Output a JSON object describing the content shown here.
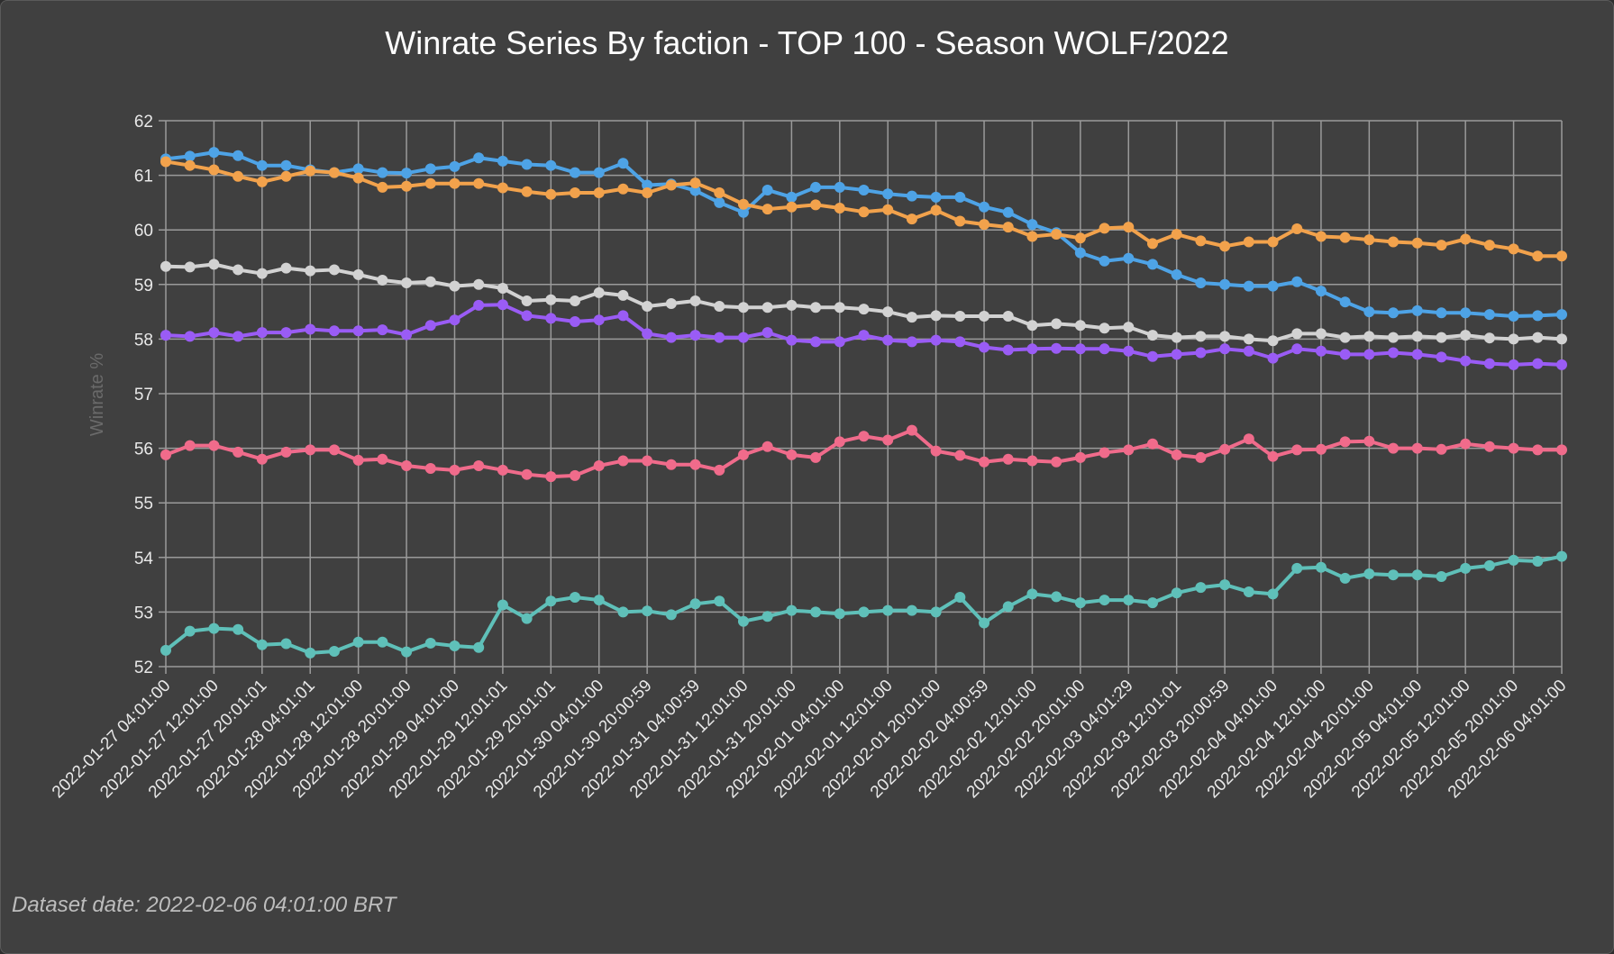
{
  "chart_data": {
    "type": "line",
    "title": "Winrate Series By faction - TOP 100 - Season WOLF/2022",
    "xlabel": "",
    "ylabel": "Winrate %",
    "ylim": [
      52,
      62
    ],
    "yticks": [
      52,
      53,
      54,
      55,
      56,
      57,
      58,
      59,
      60,
      61,
      62
    ],
    "grid": true,
    "point_count": 59,
    "x_labels": [
      "2022-01-27 04:01:00",
      "2022-01-27 12:01:00",
      "2022-01-27 20:01:01",
      "2022-01-28 04:01:01",
      "2022-01-28 12:01:00",
      "2022-01-28 20:01:00",
      "2022-01-29 04:01:00",
      "2022-01-29 12:01:01",
      "2022-01-29 20:01:01",
      "2022-01-30 04:01:00",
      "2022-01-30 20:00:59",
      "2022-01-31 04:00:59",
      "2022-01-31 12:01:00",
      "2022-01-31 20:01:00",
      "2022-02-01 04:01:00",
      "2022-02-01 12:01:00",
      "2022-02-01 20:01:00",
      "2022-02-02 04:00:59",
      "2022-02-02 12:01:00",
      "2022-02-02 20:01:00",
      "2022-02-03 04:01:29",
      "2022-02-03 12:01:01",
      "2022-02-03 20:00:59",
      "2022-02-04 04:01:00",
      "2022-02-04 12:01:00",
      "2022-02-04 20:01:00",
      "2022-02-05 04:01:00",
      "2022-02-05 12:01:00",
      "2022-02-05 20:01:00",
      "2022-02-06 04:01:00"
    ],
    "series": [
      {
        "color": "#4ea3e6",
        "values": [
          61.3,
          61.35,
          61.42,
          61.36,
          61.18,
          61.18,
          61.1,
          61.05,
          61.12,
          61.05,
          61.04,
          61.12,
          61.16,
          61.32,
          61.26,
          61.2,
          61.18,
          61.05,
          61.05,
          61.22,
          60.82,
          60.84,
          60.72,
          60.5,
          60.32,
          60.73,
          60.6,
          60.78,
          60.78,
          60.73,
          60.66,
          60.62,
          60.6,
          60.6,
          60.42,
          60.32,
          60.1,
          59.95,
          59.58,
          59.43,
          59.48,
          59.37,
          59.18,
          59.03,
          59.0,
          58.97,
          58.97,
          59.05,
          58.88,
          58.68,
          58.5,
          58.48,
          58.52,
          58.48,
          58.48,
          58.45,
          58.42,
          58.43,
          58.45
        ]
      },
      {
        "color": "#f2a24c",
        "values": [
          61.25,
          61.18,
          61.1,
          60.98,
          60.88,
          60.98,
          61.08,
          61.05,
          60.95,
          60.78,
          60.8,
          60.85,
          60.85,
          60.85,
          60.77,
          60.7,
          60.65,
          60.68,
          60.68,
          60.75,
          60.68,
          60.82,
          60.86,
          60.68,
          60.47,
          60.38,
          60.42,
          60.46,
          60.4,
          60.33,
          60.37,
          60.2,
          60.36,
          60.16,
          60.1,
          60.05,
          59.88,
          59.92,
          59.85,
          60.03,
          60.05,
          59.75,
          59.92,
          59.8,
          59.7,
          59.78,
          59.78,
          60.02,
          59.88,
          59.86,
          59.82,
          59.78,
          59.76,
          59.72,
          59.83,
          59.72,
          59.65,
          59.52,
          59.52
        ]
      },
      {
        "color": "#d2d2d2",
        "values": [
          59.33,
          59.32,
          59.37,
          59.27,
          59.2,
          59.3,
          59.25,
          59.27,
          59.18,
          59.08,
          59.03,
          59.05,
          58.97,
          59.0,
          58.93,
          58.7,
          58.72,
          58.7,
          58.85,
          58.8,
          58.6,
          58.65,
          58.7,
          58.6,
          58.58,
          58.58,
          58.62,
          58.58,
          58.58,
          58.55,
          58.5,
          58.4,
          58.43,
          58.42,
          58.42,
          58.42,
          58.25,
          58.28,
          58.25,
          58.2,
          58.22,
          58.07,
          58.03,
          58.05,
          58.05,
          58.0,
          57.97,
          58.1,
          58.1,
          58.03,
          58.05,
          58.03,
          58.05,
          58.03,
          58.07,
          58.02,
          58.0,
          58.03,
          58.0
        ]
      },
      {
        "color": "#9a5cf5",
        "values": [
          58.07,
          58.05,
          58.12,
          58.05,
          58.12,
          58.12,
          58.18,
          58.15,
          58.15,
          58.17,
          58.08,
          58.25,
          58.35,
          58.62,
          58.63,
          58.43,
          58.38,
          58.32,
          58.35,
          58.43,
          58.1,
          58.03,
          58.07,
          58.03,
          58.03,
          58.12,
          57.98,
          57.95,
          57.95,
          58.07,
          57.98,
          57.95,
          57.98,
          57.95,
          57.85,
          57.8,
          57.82,
          57.83,
          57.82,
          57.82,
          57.78,
          57.68,
          57.72,
          57.75,
          57.82,
          57.78,
          57.65,
          57.82,
          57.78,
          57.72,
          57.72,
          57.75,
          57.72,
          57.67,
          57.6,
          57.55,
          57.53,
          57.55,
          57.53
        ]
      },
      {
        "color": "#f06b8b",
        "values": [
          55.88,
          56.05,
          56.05,
          55.93,
          55.8,
          55.93,
          55.97,
          55.97,
          55.78,
          55.8,
          55.68,
          55.63,
          55.6,
          55.68,
          55.6,
          55.52,
          55.48,
          55.5,
          55.68,
          55.77,
          55.77,
          55.7,
          55.7,
          55.6,
          55.88,
          56.03,
          55.88,
          55.83,
          56.12,
          56.22,
          56.15,
          56.33,
          55.95,
          55.87,
          55.75,
          55.8,
          55.77,
          55.75,
          55.83,
          55.92,
          55.97,
          56.08,
          55.88,
          55.83,
          55.98,
          56.17,
          55.85,
          55.97,
          55.98,
          56.12,
          56.13,
          56.0,
          56.0,
          55.98,
          56.08,
          56.03,
          56.0,
          55.97,
          55.97
        ]
      },
      {
        "color": "#5fc0b9",
        "values": [
          52.3,
          52.65,
          52.7,
          52.68,
          52.4,
          52.42,
          52.25,
          52.28,
          52.45,
          52.45,
          52.27,
          52.43,
          52.38,
          52.35,
          53.13,
          52.88,
          53.2,
          53.27,
          53.22,
          53.0,
          53.02,
          52.95,
          53.15,
          53.2,
          52.83,
          52.92,
          53.03,
          53.0,
          52.97,
          53.0,
          53.03,
          53.03,
          53.0,
          53.27,
          52.8,
          53.1,
          53.33,
          53.28,
          53.17,
          53.22,
          53.22,
          53.17,
          53.35,
          53.45,
          53.5,
          53.37,
          53.33,
          53.8,
          53.82,
          53.62,
          53.7,
          53.68,
          53.68,
          53.65,
          53.8,
          53.85,
          53.95,
          53.93,
          54.02
        ]
      }
    ]
  },
  "footnote": "Dataset date: 2022-02-06 04:01:00 BRT"
}
